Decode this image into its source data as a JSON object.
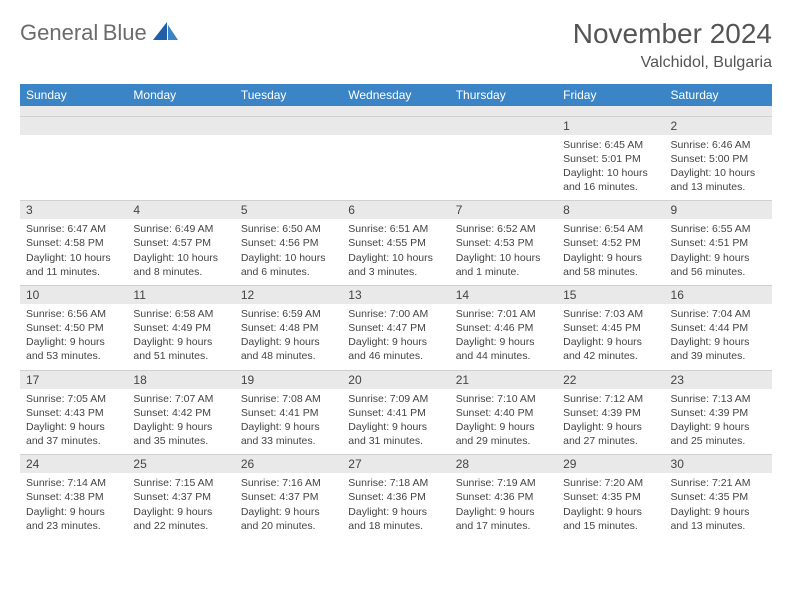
{
  "logo": {
    "word1": "General",
    "word2": "Blue"
  },
  "header": {
    "title": "November 2024",
    "location": "Valchidol, Bulgaria"
  },
  "colors": {
    "header_bg": "#3b85c7",
    "header_text": "#ffffff",
    "daynum_bg": "#e9e9e9",
    "text": "#444444",
    "logo_gray": "#6b6b6b",
    "logo_blue": "#2f7ac0"
  },
  "weekdays": [
    "Sunday",
    "Monday",
    "Tuesday",
    "Wednesday",
    "Thursday",
    "Friday",
    "Saturday"
  ],
  "weeks": [
    {
      "nums": [
        "",
        "",
        "",
        "",
        "",
        "1",
        "2"
      ],
      "cells": [
        null,
        null,
        null,
        null,
        null,
        {
          "sunrise": "Sunrise: 6:45 AM",
          "sunset": "Sunset: 5:01 PM",
          "day1": "Daylight: 10 hours",
          "day2": "and 16 minutes."
        },
        {
          "sunrise": "Sunrise: 6:46 AM",
          "sunset": "Sunset: 5:00 PM",
          "day1": "Daylight: 10 hours",
          "day2": "and 13 minutes."
        }
      ]
    },
    {
      "nums": [
        "3",
        "4",
        "5",
        "6",
        "7",
        "8",
        "9"
      ],
      "cells": [
        {
          "sunrise": "Sunrise: 6:47 AM",
          "sunset": "Sunset: 4:58 PM",
          "day1": "Daylight: 10 hours",
          "day2": "and 11 minutes."
        },
        {
          "sunrise": "Sunrise: 6:49 AM",
          "sunset": "Sunset: 4:57 PM",
          "day1": "Daylight: 10 hours",
          "day2": "and 8 minutes."
        },
        {
          "sunrise": "Sunrise: 6:50 AM",
          "sunset": "Sunset: 4:56 PM",
          "day1": "Daylight: 10 hours",
          "day2": "and 6 minutes."
        },
        {
          "sunrise": "Sunrise: 6:51 AM",
          "sunset": "Sunset: 4:55 PM",
          "day1": "Daylight: 10 hours",
          "day2": "and 3 minutes."
        },
        {
          "sunrise": "Sunrise: 6:52 AM",
          "sunset": "Sunset: 4:53 PM",
          "day1": "Daylight: 10 hours",
          "day2": "and 1 minute."
        },
        {
          "sunrise": "Sunrise: 6:54 AM",
          "sunset": "Sunset: 4:52 PM",
          "day1": "Daylight: 9 hours",
          "day2": "and 58 minutes."
        },
        {
          "sunrise": "Sunrise: 6:55 AM",
          "sunset": "Sunset: 4:51 PM",
          "day1": "Daylight: 9 hours",
          "day2": "and 56 minutes."
        }
      ]
    },
    {
      "nums": [
        "10",
        "11",
        "12",
        "13",
        "14",
        "15",
        "16"
      ],
      "cells": [
        {
          "sunrise": "Sunrise: 6:56 AM",
          "sunset": "Sunset: 4:50 PM",
          "day1": "Daylight: 9 hours",
          "day2": "and 53 minutes."
        },
        {
          "sunrise": "Sunrise: 6:58 AM",
          "sunset": "Sunset: 4:49 PM",
          "day1": "Daylight: 9 hours",
          "day2": "and 51 minutes."
        },
        {
          "sunrise": "Sunrise: 6:59 AM",
          "sunset": "Sunset: 4:48 PM",
          "day1": "Daylight: 9 hours",
          "day2": "and 48 minutes."
        },
        {
          "sunrise": "Sunrise: 7:00 AM",
          "sunset": "Sunset: 4:47 PM",
          "day1": "Daylight: 9 hours",
          "day2": "and 46 minutes."
        },
        {
          "sunrise": "Sunrise: 7:01 AM",
          "sunset": "Sunset: 4:46 PM",
          "day1": "Daylight: 9 hours",
          "day2": "and 44 minutes."
        },
        {
          "sunrise": "Sunrise: 7:03 AM",
          "sunset": "Sunset: 4:45 PM",
          "day1": "Daylight: 9 hours",
          "day2": "and 42 minutes."
        },
        {
          "sunrise": "Sunrise: 7:04 AM",
          "sunset": "Sunset: 4:44 PM",
          "day1": "Daylight: 9 hours",
          "day2": "and 39 minutes."
        }
      ]
    },
    {
      "nums": [
        "17",
        "18",
        "19",
        "20",
        "21",
        "22",
        "23"
      ],
      "cells": [
        {
          "sunrise": "Sunrise: 7:05 AM",
          "sunset": "Sunset: 4:43 PM",
          "day1": "Daylight: 9 hours",
          "day2": "and 37 minutes."
        },
        {
          "sunrise": "Sunrise: 7:07 AM",
          "sunset": "Sunset: 4:42 PM",
          "day1": "Daylight: 9 hours",
          "day2": "and 35 minutes."
        },
        {
          "sunrise": "Sunrise: 7:08 AM",
          "sunset": "Sunset: 4:41 PM",
          "day1": "Daylight: 9 hours",
          "day2": "and 33 minutes."
        },
        {
          "sunrise": "Sunrise: 7:09 AM",
          "sunset": "Sunset: 4:41 PM",
          "day1": "Daylight: 9 hours",
          "day2": "and 31 minutes."
        },
        {
          "sunrise": "Sunrise: 7:10 AM",
          "sunset": "Sunset: 4:40 PM",
          "day1": "Daylight: 9 hours",
          "day2": "and 29 minutes."
        },
        {
          "sunrise": "Sunrise: 7:12 AM",
          "sunset": "Sunset: 4:39 PM",
          "day1": "Daylight: 9 hours",
          "day2": "and 27 minutes."
        },
        {
          "sunrise": "Sunrise: 7:13 AM",
          "sunset": "Sunset: 4:39 PM",
          "day1": "Daylight: 9 hours",
          "day2": "and 25 minutes."
        }
      ]
    },
    {
      "nums": [
        "24",
        "25",
        "26",
        "27",
        "28",
        "29",
        "30"
      ],
      "cells": [
        {
          "sunrise": "Sunrise: 7:14 AM",
          "sunset": "Sunset: 4:38 PM",
          "day1": "Daylight: 9 hours",
          "day2": "and 23 minutes."
        },
        {
          "sunrise": "Sunrise: 7:15 AM",
          "sunset": "Sunset: 4:37 PM",
          "day1": "Daylight: 9 hours",
          "day2": "and 22 minutes."
        },
        {
          "sunrise": "Sunrise: 7:16 AM",
          "sunset": "Sunset: 4:37 PM",
          "day1": "Daylight: 9 hours",
          "day2": "and 20 minutes."
        },
        {
          "sunrise": "Sunrise: 7:18 AM",
          "sunset": "Sunset: 4:36 PM",
          "day1": "Daylight: 9 hours",
          "day2": "and 18 minutes."
        },
        {
          "sunrise": "Sunrise: 7:19 AM",
          "sunset": "Sunset: 4:36 PM",
          "day1": "Daylight: 9 hours",
          "day2": "and 17 minutes."
        },
        {
          "sunrise": "Sunrise: 7:20 AM",
          "sunset": "Sunset: 4:35 PM",
          "day1": "Daylight: 9 hours",
          "day2": "and 15 minutes."
        },
        {
          "sunrise": "Sunrise: 7:21 AM",
          "sunset": "Sunset: 4:35 PM",
          "day1": "Daylight: 9 hours",
          "day2": "and 13 minutes."
        }
      ]
    }
  ]
}
